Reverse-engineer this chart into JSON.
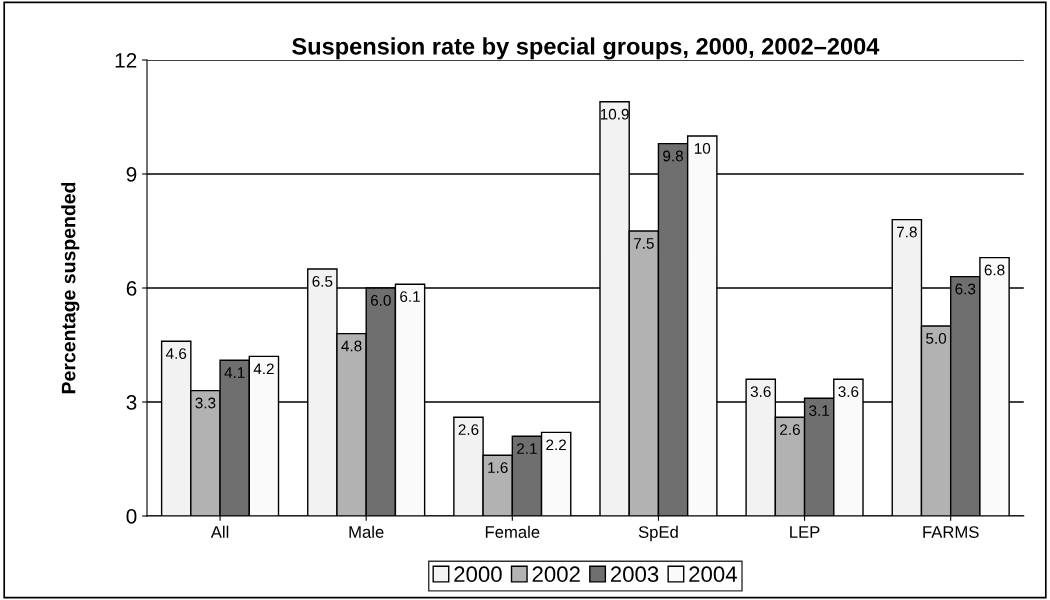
{
  "chart_data": {
    "type": "bar",
    "title": "Suspension rate by special groups, 2000, 2002–2004",
    "ylabel": "Percentage suspended",
    "categories": [
      "All",
      "Male",
      "Female",
      "SpEd",
      "LEP",
      "FARMS"
    ],
    "series": [
      {
        "name": "2000",
        "color": "#f2f2f2",
        "values": [
          4.6,
          6.5,
          2.6,
          10.9,
          3.6,
          7.8
        ],
        "value_labels": [
          "4.6",
          "6.5",
          "2.6",
          "10.9",
          "3.6",
          "7.8"
        ]
      },
      {
        "name": "2002",
        "color": "#b2b2b2",
        "values": [
          3.3,
          4.8,
          1.6,
          7.5,
          2.6,
          5.0
        ],
        "value_labels": [
          "3.3",
          "4.8",
          "1.6",
          "7.5",
          "2.6",
          "5.0"
        ]
      },
      {
        "name": "2003",
        "color": "#6f6f6f",
        "values": [
          4.1,
          6.0,
          2.1,
          9.8,
          3.1,
          6.3
        ],
        "value_labels": [
          "4.1",
          "6.0",
          "2.1",
          "9.8",
          "3.1",
          "6.3"
        ]
      },
      {
        "name": "2004",
        "color": "#fafafa",
        "values": [
          4.2,
          6.1,
          2.2,
          10,
          3.6,
          6.8
        ],
        "value_labels": [
          "4.2",
          "6.1",
          "2.2",
          "10",
          "3.6",
          "6.8"
        ]
      }
    ],
    "ylim": [
      0,
      12
    ],
    "yticks": [
      0,
      3,
      6,
      9,
      12
    ],
    "grid": "y",
    "legend": "bottom"
  }
}
